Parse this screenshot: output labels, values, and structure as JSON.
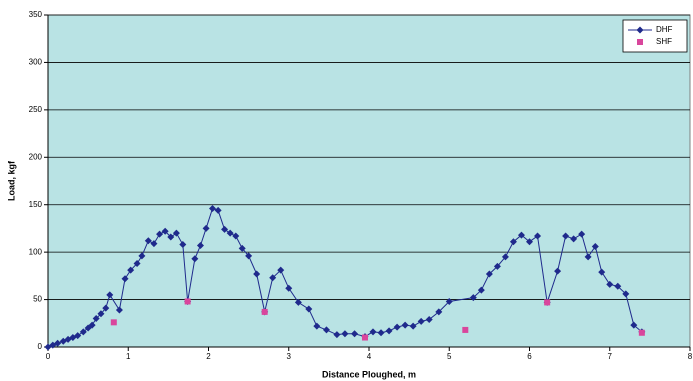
{
  "chart_data": {
    "type": "line",
    "x_label": "Distance Ploughed, m",
    "y_label": "Load, kgf",
    "xlim": [
      0,
      8
    ],
    "xticks": [
      0,
      1,
      2,
      3,
      4,
      5,
      6,
      7,
      8
    ],
    "ylim": [
      0,
      350
    ],
    "yticks": [
      0,
      50,
      100,
      150,
      200,
      250,
      300,
      350
    ],
    "grid": true,
    "legend": "top-right",
    "background": "#b9e3e4",
    "series": [
      {
        "name": "DHF",
        "color": "#1f2a8c",
        "marker": "diamond",
        "line": true,
        "x": [
          0,
          0.06,
          0.12,
          0.19,
          0.25,
          0.31,
          0.37,
          0.44,
          0.5,
          0.55,
          0.6,
          0.66,
          0.72,
          0.77,
          0.89,
          0.96,
          1.03,
          1.11,
          1.17,
          1.25,
          1.32,
          1.39,
          1.46,
          1.53,
          1.6,
          1.68,
          1.74,
          1.83,
          1.9,
          1.97,
          2.05,
          2.12,
          2.2,
          2.27,
          2.34,
          2.42,
          2.5,
          2.6,
          2.7,
          2.8,
          2.9,
          3.0,
          3.12,
          3.25,
          3.35,
          3.47,
          3.6,
          3.7,
          3.82,
          3.95,
          4.05,
          4.15,
          4.25,
          4.35,
          4.45,
          4.55,
          4.65,
          4.75,
          4.87,
          5.0,
          5.3,
          5.4,
          5.5,
          5.6,
          5.7,
          5.8,
          5.9,
          6.0,
          6.1,
          6.22,
          6.35,
          6.45,
          6.55,
          6.65,
          6.73,
          6.82,
          6.9,
          7.0,
          7.1,
          7.2,
          7.3,
          7.4
        ],
        "values": [
          0,
          2,
          4,
          6,
          8,
          10,
          12,
          16,
          20,
          23,
          30,
          35,
          41,
          55,
          39,
          72,
          81,
          88,
          96,
          112,
          109,
          119,
          122,
          116,
          120,
          108,
          48,
          93,
          107,
          125,
          146,
          144,
          124,
          120,
          117,
          104,
          96,
          77,
          37,
          73,
          81,
          62,
          47,
          40,
          22,
          18,
          13,
          14,
          14,
          11,
          16,
          15,
          17,
          21,
          23,
          22,
          27,
          29,
          37,
          48,
          52,
          60,
          77,
          85,
          95,
          111,
          118,
          111,
          117,
          47,
          80,
          117,
          114,
          119,
          95,
          106,
          79,
          66,
          64,
          56,
          23,
          16
        ]
      },
      {
        "name": "SHF",
        "color": "#d9469c",
        "marker": "square",
        "line": false,
        "x": [
          0.82,
          1.74,
          2.7,
          3.95,
          5.2,
          6.22,
          7.4
        ],
        "values": [
          26,
          48,
          37,
          10,
          18,
          47,
          15
        ]
      }
    ]
  }
}
